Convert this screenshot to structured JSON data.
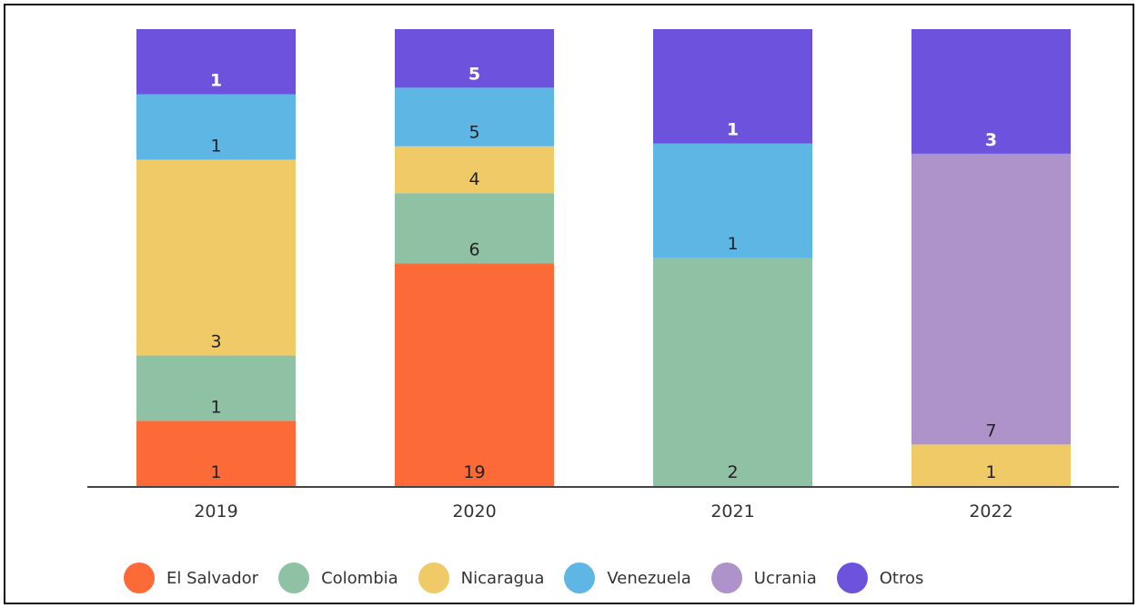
{
  "chart_data": {
    "type": "bar",
    "stacked": true,
    "normalized": true,
    "categories": [
      "2019",
      "2020",
      "2021",
      "2022"
    ],
    "series": [
      {
        "name": "El Salvador",
        "color": "#fc6a38",
        "values": [
          1,
          19,
          0,
          0
        ]
      },
      {
        "name": "Colombia",
        "color": "#8fc2a5",
        "values": [
          1,
          6,
          2,
          0
        ]
      },
      {
        "name": "Nicaragua",
        "color": "#efca67",
        "values": [
          3,
          4,
          0,
          1
        ]
      },
      {
        "name": "Venezuela",
        "color": "#5db6e4",
        "values": [
          1,
          5,
          1,
          0
        ]
      },
      {
        "name": "Ucrania",
        "color": "#ad93c9",
        "values": [
          0,
          0,
          0,
          7
        ]
      },
      {
        "name": "Otros",
        "color": "#6d52de",
        "values": [
          1,
          5,
          1,
          3
        ]
      }
    ],
    "label_colors": {
      "dark": "#222222",
      "light": "#ffffff"
    },
    "legend_position": "bottom",
    "grid": false
  }
}
